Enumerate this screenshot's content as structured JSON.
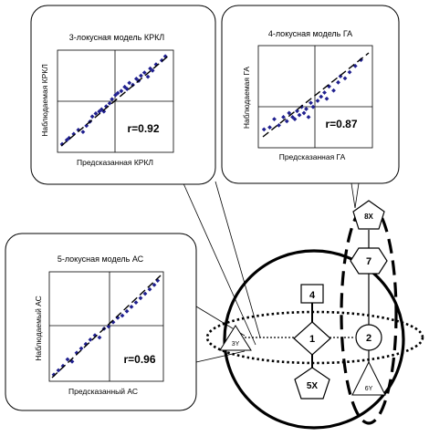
{
  "panels": {
    "krkl": {
      "title": "3-локусная модель КРКЛ",
      "ylabel": "Наблюдаемая КРКЛ",
      "xlabel": "Предсказанная КРКЛ",
      "r_label": "r=0.92"
    },
    "ga": {
      "title": "4-локусная модель ГА",
      "ylabel": "Наблюдаемая ГА",
      "xlabel": "Предсказанная ГА",
      "r_label": "r=0.87"
    },
    "as": {
      "title": "5-локусная модель АС",
      "ylabel": "Наблюдаемый АС",
      "xlabel": "Предсказанный АС",
      "r_label": "r=0.96"
    }
  },
  "network": {
    "node_4": "4",
    "node_1": "1",
    "node_2": "2",
    "node_3y": "3Y",
    "node_5x": "5X",
    "node_6y": "6Y",
    "node_7": "7",
    "node_8x": "8X"
  },
  "chart_data": [
    {
      "type": "scatter",
      "title": "3-локусная модель КРКЛ",
      "xlabel": "Предсказанная КРКЛ",
      "ylabel": "Наблюдаемая КРКЛ",
      "annotation": "r=0.92",
      "x": [
        0.04,
        0.08,
        0.1,
        0.14,
        0.18,
        0.22,
        0.25,
        0.28,
        0.3,
        0.33,
        0.36,
        0.38,
        0.4,
        0.42,
        0.45,
        0.47,
        0.5,
        0.52,
        0.55,
        0.58,
        0.6,
        0.62,
        0.65,
        0.68,
        0.7,
        0.72,
        0.75,
        0.78,
        0.8,
        0.82,
        0.85,
        0.9,
        0.93
      ],
      "y": [
        0.08,
        0.12,
        0.14,
        0.18,
        0.22,
        0.2,
        0.26,
        0.3,
        0.35,
        0.38,
        0.4,
        0.42,
        0.4,
        0.45,
        0.48,
        0.52,
        0.56,
        0.58,
        0.6,
        0.64,
        0.62,
        0.68,
        0.66,
        0.72,
        0.7,
        0.75,
        0.78,
        0.74,
        0.82,
        0.8,
        0.86,
        0.9,
        0.94
      ]
    },
    {
      "type": "scatter",
      "title": "4-локусная модель ГА",
      "xlabel": "Предсказанная ГА",
      "ylabel": "Наблюдаемая ГА",
      "annotation": "r=0.87",
      "x": [
        0.05,
        0.1,
        0.14,
        0.18,
        0.22,
        0.25,
        0.27,
        0.3,
        0.32,
        0.34,
        0.36,
        0.38,
        0.4,
        0.42,
        0.44,
        0.46,
        0.48,
        0.52,
        0.55,
        0.58,
        0.6,
        0.62,
        0.66,
        0.7,
        0.72,
        0.76,
        0.8,
        0.85,
        0.9
      ],
      "y": [
        0.18,
        0.2,
        0.28,
        0.22,
        0.3,
        0.26,
        0.34,
        0.3,
        0.28,
        0.36,
        0.32,
        0.4,
        0.34,
        0.38,
        0.3,
        0.44,
        0.4,
        0.46,
        0.5,
        0.54,
        0.48,
        0.6,
        0.56,
        0.64,
        0.7,
        0.68,
        0.74,
        0.8,
        0.86
      ]
    },
    {
      "type": "scatter",
      "title": "5-локусная модель АС",
      "xlabel": "Предсказанный АС",
      "ylabel": "Наблюдаемый АС",
      "annotation": "r=0.96",
      "x": [
        0.04,
        0.08,
        0.12,
        0.16,
        0.2,
        0.24,
        0.28,
        0.32,
        0.36,
        0.4,
        0.44,
        0.48,
        0.52,
        0.56,
        0.6,
        0.64,
        0.68,
        0.72,
        0.76,
        0.8,
        0.84,
        0.88,
        0.92,
        0.95
      ],
      "y": [
        0.06,
        0.1,
        0.14,
        0.2,
        0.18,
        0.26,
        0.3,
        0.34,
        0.38,
        0.42,
        0.4,
        0.48,
        0.5,
        0.54,
        0.58,
        0.6,
        0.64,
        0.68,
        0.72,
        0.76,
        0.8,
        0.84,
        0.88,
        0.92
      ]
    }
  ]
}
